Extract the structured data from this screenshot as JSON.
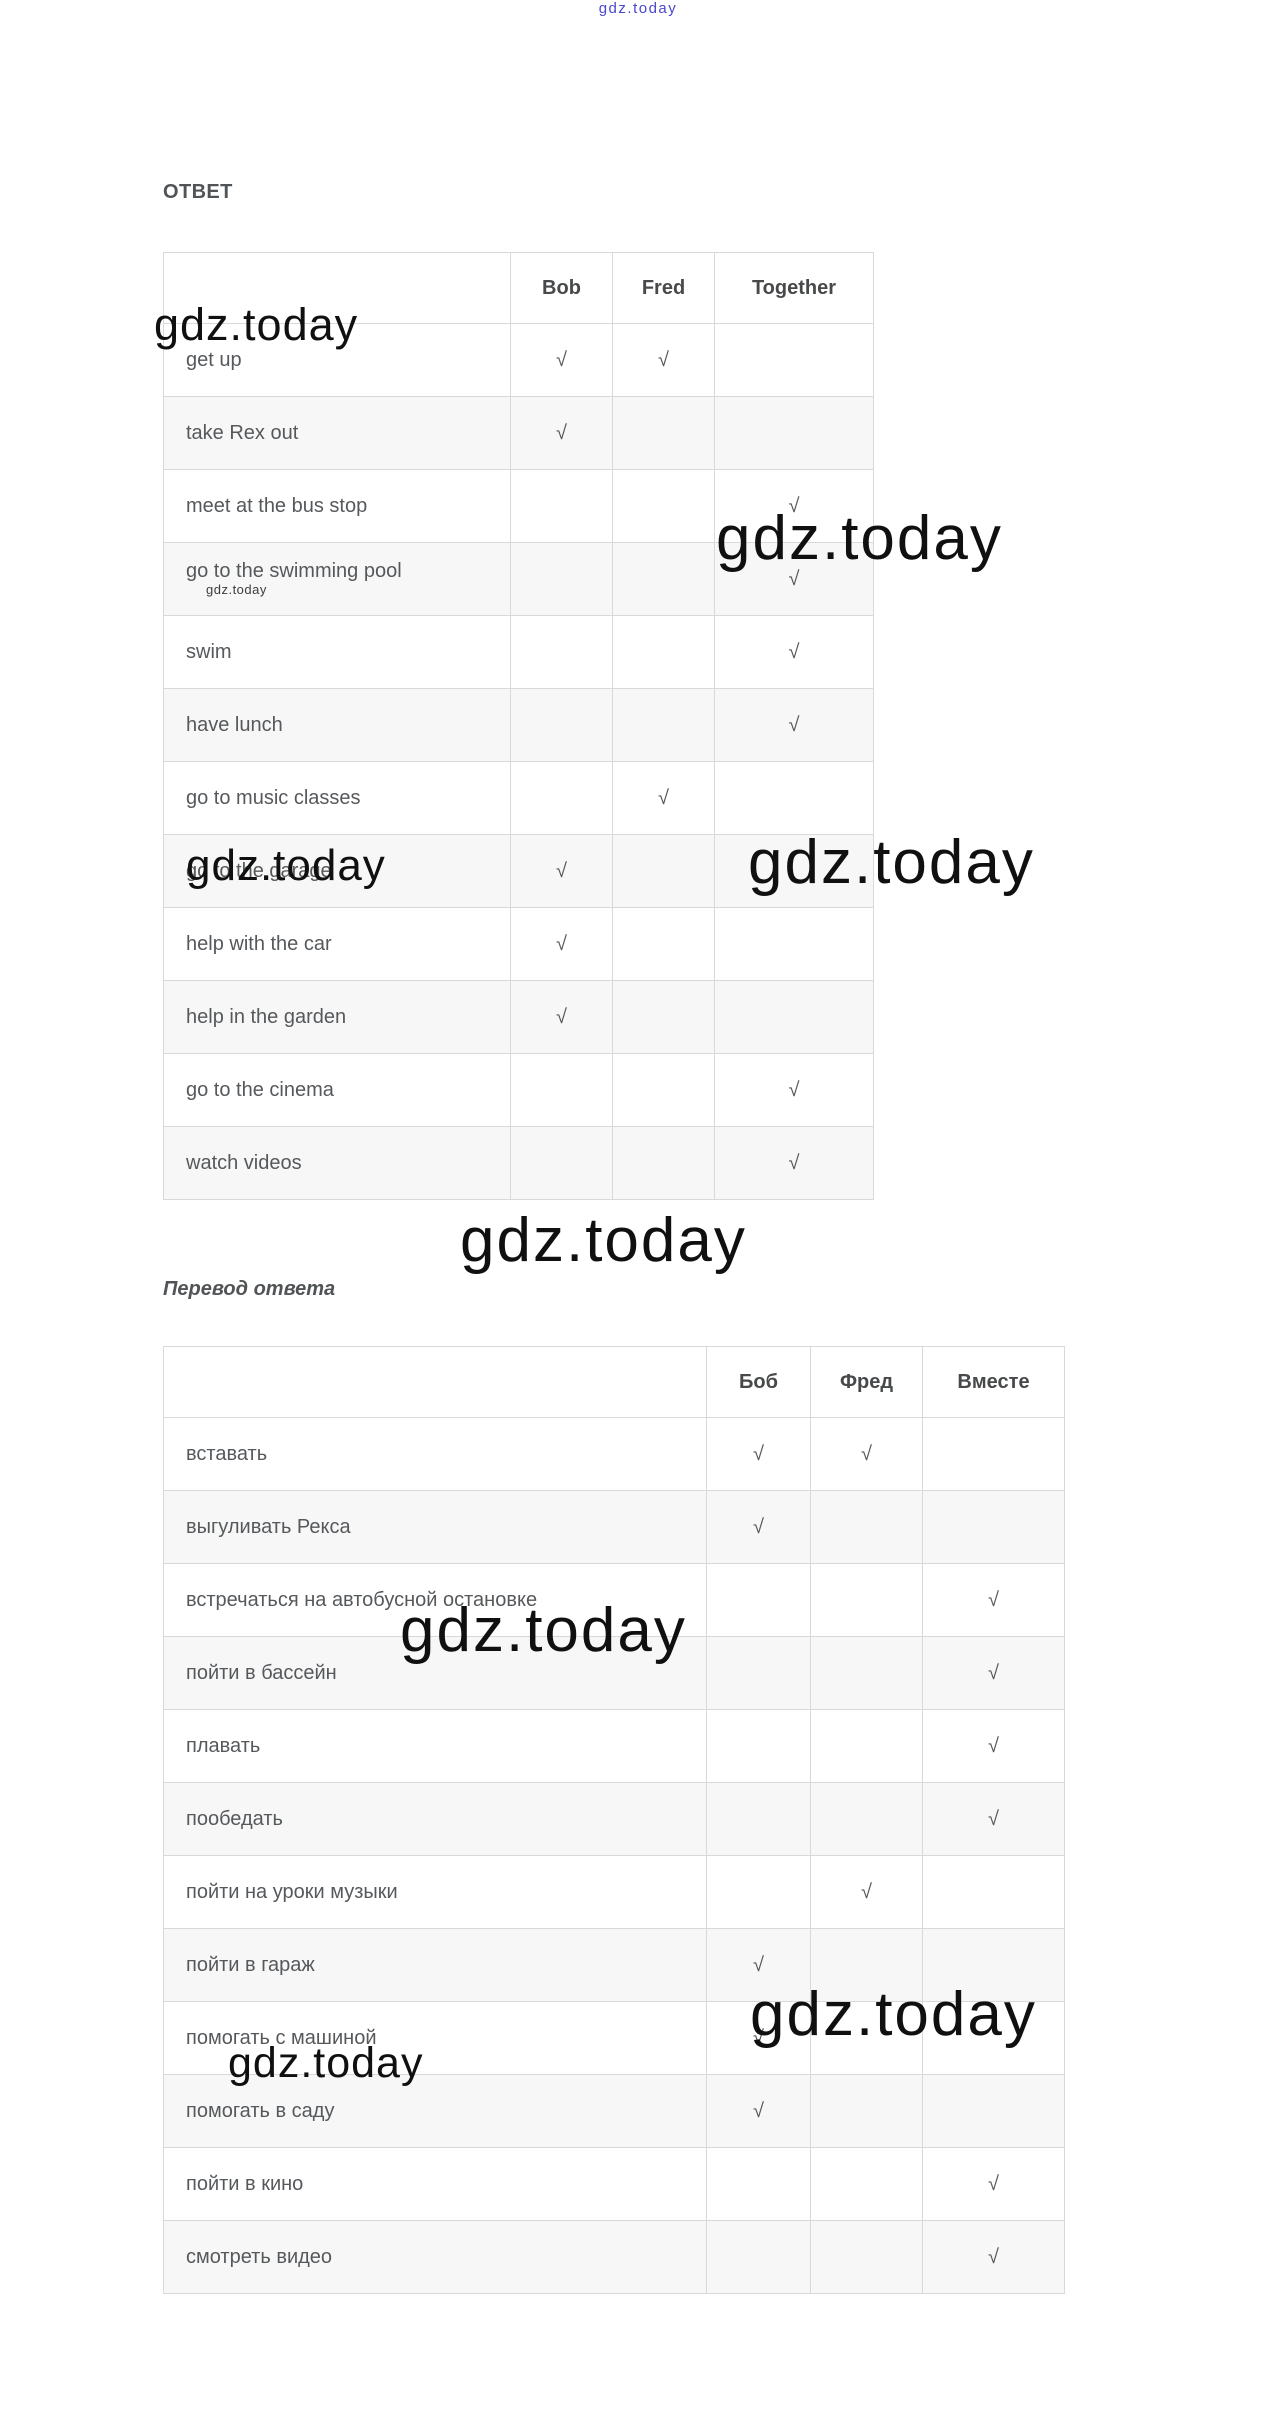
{
  "watermark": {
    "text": "gdz.today",
    "color": "#101010",
    "link_color": "#4b47cc"
  },
  "check_glyph": "√",
  "answer_section": {
    "heading": "ОТВЕТ",
    "table": {
      "columns": [
        "Bob",
        "Fred",
        "Together"
      ],
      "rows": [
        {
          "label": "get up",
          "checks": [
            true,
            true,
            false
          ]
        },
        {
          "label": "take Rex out",
          "checks": [
            true,
            false,
            false
          ]
        },
        {
          "label": "meet at the bus stop",
          "checks": [
            false,
            false,
            true
          ]
        },
        {
          "label": "go to the swimming pool",
          "checks": [
            false,
            false,
            true
          ],
          "inline_watermark": true
        },
        {
          "label": "swim",
          "checks": [
            false,
            false,
            true
          ]
        },
        {
          "label": "have lunch",
          "checks": [
            false,
            false,
            true
          ]
        },
        {
          "label": "go to music classes",
          "checks": [
            false,
            true,
            false
          ]
        },
        {
          "label": "go to the garage",
          "checks": [
            true,
            false,
            false
          ]
        },
        {
          "label": "help with the car",
          "checks": [
            true,
            false,
            false
          ]
        },
        {
          "label": "help in the garden",
          "checks": [
            true,
            false,
            false
          ]
        },
        {
          "label": "go to the cinema",
          "checks": [
            false,
            false,
            true
          ]
        },
        {
          "label": "watch videos",
          "checks": [
            false,
            false,
            true
          ]
        }
      ]
    }
  },
  "translation_section": {
    "heading": "Перевод ответа",
    "table": {
      "columns": [
        "Боб",
        "Фред",
        "Вместе"
      ],
      "rows": [
        {
          "label": "вставать",
          "checks": [
            true,
            true,
            false
          ]
        },
        {
          "label": "выгуливать Рекса",
          "checks": [
            true,
            false,
            false
          ]
        },
        {
          "label": "встречаться на автобусной остановке",
          "checks": [
            false,
            false,
            true
          ]
        },
        {
          "label": "пойти в бассейн",
          "checks": [
            false,
            false,
            true
          ]
        },
        {
          "label": "плавать",
          "checks": [
            false,
            false,
            true
          ]
        },
        {
          "label": "пообедать",
          "checks": [
            false,
            false,
            true
          ]
        },
        {
          "label": "пойти на уроки музыки",
          "checks": [
            false,
            true,
            false
          ]
        },
        {
          "label": "пойти в гараж",
          "checks": [
            true,
            false,
            false
          ]
        },
        {
          "label": "помогать с машиной",
          "checks": [
            true,
            false,
            false
          ]
        },
        {
          "label": "помогать в саду",
          "checks": [
            true,
            false,
            false
          ]
        },
        {
          "label": "пойти в кино",
          "checks": [
            false,
            false,
            true
          ]
        },
        {
          "label": "смотреть видео",
          "checks": [
            false,
            false,
            true
          ]
        }
      ]
    }
  },
  "colors": {
    "check": "#8a909b",
    "border": "#d9d9d9",
    "alt_row": "#f7f7f7",
    "label_text": "#56595c",
    "header_text": "#47494b"
  }
}
